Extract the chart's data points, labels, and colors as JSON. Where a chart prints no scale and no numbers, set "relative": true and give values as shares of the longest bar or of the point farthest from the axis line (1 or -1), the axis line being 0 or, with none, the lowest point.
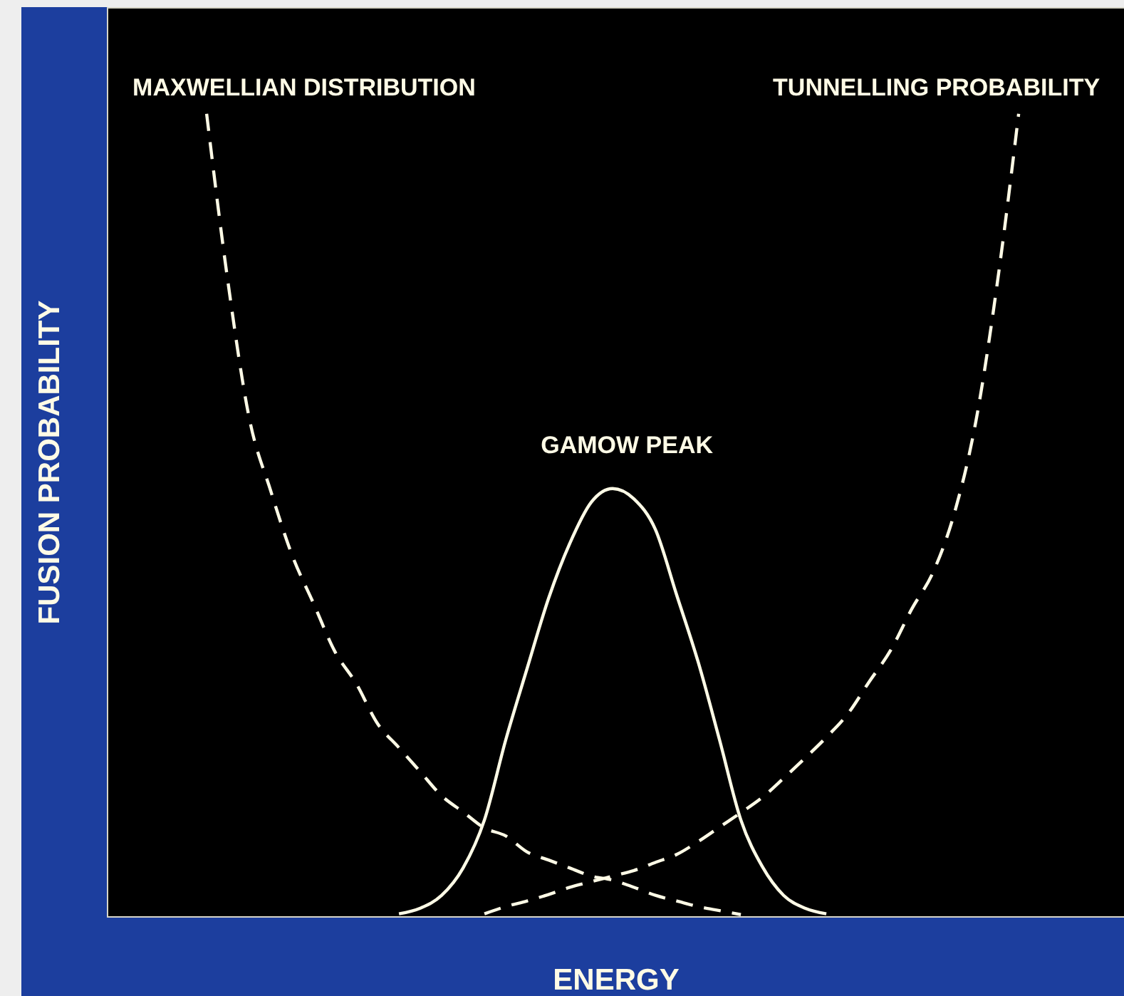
{
  "chart_data": {
    "type": "line",
    "relative": true,
    "xlabel": "ENERGY",
    "ylabel": "FUSION PROBABILITY",
    "categories": [
      null,
      null,
      null,
      null,
      null,
      null,
      null,
      null,
      null,
      null,
      null,
      null,
      null,
      null,
      null,
      null,
      null,
      null,
      null,
      null,
      null,
      null,
      null,
      null,
      null,
      null,
      null,
      null,
      null,
      null,
      null,
      null,
      null,
      null,
      null,
      null,
      null,
      null,
      null
    ],
    "series": [
      {
        "name": "MAXWELLIAN DISTRIBUTION",
        "color": "#fffbe6",
        "line_style": "dashed",
        "values": [
          1,
          0.79,
          0.62,
          0.53,
          0.45,
          0.39,
          0.33,
          0.29,
          0.24,
          0.21,
          0.18,
          0.15,
          0.13,
          0.11,
          0.1,
          0.08,
          0.07,
          0.06,
          0.05,
          0.045,
          0.036,
          0.026,
          0.019,
          0.012,
          0.007,
          0.002,
          null,
          null,
          null,
          null,
          null,
          null,
          null,
          null,
          null,
          null,
          null,
          null,
          null
        ]
      },
      {
        "name": "TUNNELLING PROBABILITY",
        "color": "#fffbe6",
        "line_style": "dashed",
        "values": [
          null,
          null,
          null,
          null,
          null,
          null,
          null,
          null,
          null,
          null,
          null,
          null,
          null,
          0.003,
          0.012,
          0.019,
          0.027,
          0.036,
          0.043,
          0.05,
          0.057,
          0.067,
          0.077,
          0.093,
          0.111,
          0.129,
          0.148,
          0.172,
          0.197,
          0.223,
          0.252,
          0.292,
          0.331,
          0.383,
          0.429,
          0.503,
          0.617,
          0.789,
          1
        ]
      },
      {
        "name": "GAMOW PEAK",
        "color": "#fffbe6",
        "line_style": "solid",
        "values": [
          null,
          null,
          null,
          null,
          null,
          null,
          null,
          null,
          null,
          0.003,
          0.01,
          0.026,
          0.06,
          0.12,
          0.22,
          0.309,
          0.396,
          0.465,
          0.516,
          0.533,
          0.52,
          0.482,
          0.4,
          0.317,
          0.22,
          0.12,
          0.062,
          0.026,
          0.01,
          0.003,
          null,
          null,
          null,
          null,
          null,
          null,
          null,
          null,
          null
        ]
      }
    ]
  }
}
